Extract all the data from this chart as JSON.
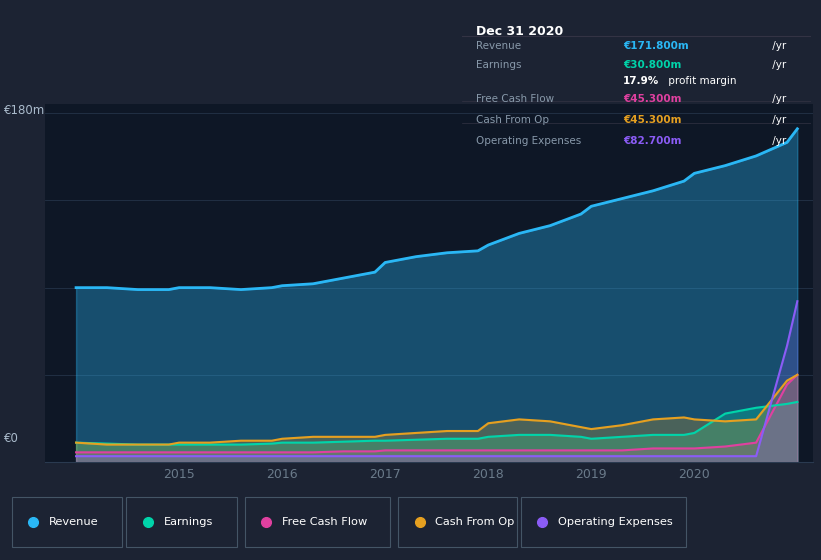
{
  "bg_color": "#1c2333",
  "plot_bg_color": "#0e1726",
  "infobox_bg": "#000000",
  "title": "Dec 31 2020",
  "years": [
    2014.0,
    2014.3,
    2014.6,
    2014.9,
    2015.0,
    2015.3,
    2015.6,
    2015.9,
    2016.0,
    2016.3,
    2016.6,
    2016.9,
    2017.0,
    2017.3,
    2017.6,
    2017.9,
    2018.0,
    2018.3,
    2018.6,
    2018.9,
    2019.0,
    2019.3,
    2019.6,
    2019.9,
    2020.0,
    2020.3,
    2020.6,
    2020.9,
    2021.0
  ],
  "revenue": [
    90,
    90,
    89,
    89,
    90,
    90,
    89,
    90,
    91,
    92,
    95,
    98,
    103,
    106,
    108,
    109,
    112,
    118,
    122,
    128,
    132,
    136,
    140,
    145,
    149,
    153,
    158,
    165,
    172
  ],
  "earnings": [
    10,
    9.5,
    9,
    9,
    9,
    9,
    9,
    9.5,
    10,
    10,
    10.5,
    11,
    11,
    11.5,
    12,
    12,
    13,
    14,
    14,
    13,
    12,
    13,
    14,
    14,
    15,
    25,
    28,
    30,
    31
  ],
  "free_cash_flow": [
    5,
    5,
    5,
    5,
    5,
    5,
    5,
    5,
    5,
    5,
    5.5,
    5.5,
    6,
    6,
    6,
    6,
    6,
    6,
    6,
    6,
    6,
    6,
    7,
    7,
    7,
    8,
    10,
    40,
    45
  ],
  "cash_from_op": [
    10,
    9,
    9,
    9,
    10,
    10,
    11,
    11,
    12,
    13,
    13,
    13,
    14,
    15,
    16,
    16,
    20,
    22,
    21,
    18,
    17,
    19,
    22,
    23,
    22,
    21,
    22,
    42,
    45
  ],
  "operating_expenses": [
    3,
    3,
    3,
    3,
    3,
    3,
    3,
    3,
    3,
    3,
    3,
    3,
    3,
    3,
    3,
    3,
    3,
    3,
    3,
    3,
    3,
    3,
    3,
    3,
    3,
    3,
    3,
    60,
    83
  ],
  "revenue_color": "#2ab7f5",
  "earnings_color": "#00d4aa",
  "free_cash_flow_color": "#e040a0",
  "cash_from_op_color": "#e6a020",
  "operating_expenses_color": "#8b5cf6",
  "ylabel_text": "€180m",
  "y0_text": "€0",
  "ylim": [
    0,
    185
  ],
  "xlim": [
    2013.7,
    2021.15
  ],
  "info_box": {
    "title": "Dec 31 2020",
    "rows": [
      {
        "label": "Revenue",
        "value": "€171.800m",
        "suffix": " /yr",
        "value_color": "#2ab7f5"
      },
      {
        "label": "Earnings",
        "value": "€30.800m",
        "suffix": " /yr",
        "value_color": "#00d4aa"
      },
      {
        "label": "",
        "value": "17.9%",
        "suffix": " profit margin",
        "value_color": "#ffffff"
      },
      {
        "label": "Free Cash Flow",
        "value": "€45.300m",
        "suffix": " /yr",
        "value_color": "#e040a0"
      },
      {
        "label": "Cash From Op",
        "value": "€45.300m",
        "suffix": " /yr",
        "value_color": "#e6a020"
      },
      {
        "label": "Operating Expenses",
        "value": "€82.700m",
        "suffix": " /yr",
        "value_color": "#8b5cf6"
      }
    ]
  },
  "legend_items": [
    {
      "label": "Revenue",
      "color": "#2ab7f5"
    },
    {
      "label": "Earnings",
      "color": "#00d4aa"
    },
    {
      "label": "Free Cash Flow",
      "color": "#e040a0"
    },
    {
      "label": "Cash From Op",
      "color": "#e6a020"
    },
    {
      "label": "Operating Expenses",
      "color": "#8b5cf6"
    }
  ],
  "xticks": [
    2015.0,
    2016.0,
    2017.0,
    2018.0,
    2019.0,
    2020.0
  ],
  "xtick_labels": [
    "2015",
    "2016",
    "2017",
    "2018",
    "2019",
    "2020"
  ],
  "gridline_color": "#2a3a50",
  "spine_color": "#2a3a50",
  "tick_color": "#6a7a8a"
}
